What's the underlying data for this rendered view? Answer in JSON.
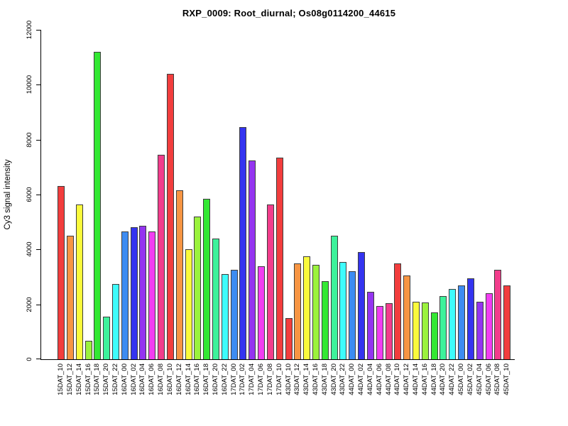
{
  "chart_data": {
    "type": "bar",
    "title": "RXP_0009: Root_diurnal; Os08g0114200_44615",
    "xlabel": "",
    "ylabel": "Cy3 signal intensity",
    "ylim": [
      0,
      12000
    ],
    "y_ticks": [
      0,
      2000,
      4000,
      6000,
      8000,
      10000,
      12000
    ],
    "grid": false,
    "legend": false,
    "background_color": "#ffffff",
    "axis_color": "#000000",
    "text_color": "#000000",
    "bar_border_color": "#3d3d3d",
    "palette": [
      "#f23d3d",
      "#f79543",
      "#fafa3c",
      "#9bf23d",
      "#33e833",
      "#3df29b",
      "#3efcfc",
      "#3d8cf2",
      "#3434f0",
      "#9434f0",
      "#f23df2",
      "#f23d8c"
    ],
    "palette_names": [
      "red",
      "orange",
      "yellow",
      "chartreuse",
      "green",
      "spring-green",
      "cyan",
      "azure",
      "blue",
      "violet",
      "magenta",
      "rose"
    ],
    "color_index": [
      0,
      1,
      2,
      3,
      4,
      5,
      6,
      7,
      8,
      9,
      10,
      11,
      0,
      1,
      2,
      3,
      4,
      5,
      6,
      7,
      8,
      9,
      10,
      11,
      0,
      0,
      1,
      2,
      3,
      4,
      5,
      6,
      7,
      8,
      9,
      10,
      11,
      0,
      1,
      2,
      3,
      4,
      5,
      6,
      7,
      8,
      9,
      10,
      11,
      0
    ],
    "categories": [
      "15DAT_10",
      "15DAT_12",
      "15DAT_14",
      "15DAT_16",
      "15DAT_18",
      "15DAT_20",
      "15DAT_22",
      "16DAT_00",
      "16DAT_02",
      "16DAT_04",
      "16DAT_06",
      "16DAT_08",
      "16DAT_10",
      "16DAT_12",
      "16DAT_14",
      "16DAT_16",
      "16DAT_18",
      "16DAT_20",
      "16DAT_22",
      "17DAT_00",
      "17DAT_02",
      "17DAT_04",
      "17DAT_06",
      "17DAT_08",
      "17DAT_10",
      "43DAT_10",
      "43DAT_12",
      "43DAT_14",
      "43DAT_16",
      "43DAT_18",
      "43DAT_20",
      "43DAT_22",
      "44DAT_00",
      "44DAT_02",
      "44DAT_04",
      "44DAT_06",
      "44DAT_08",
      "44DAT_10",
      "44DAT_12",
      "44DAT_14",
      "44DAT_16",
      "44DAT_18",
      "44DAT_20",
      "44DAT_22",
      "45DAT_00",
      "45DAT_02",
      "45DAT_04",
      "45DAT_06",
      "45DAT_08",
      "45DAT_10"
    ],
    "values": [
      6300,
      4500,
      5650,
      680,
      11200,
      1550,
      2750,
      4650,
      4800,
      4850,
      4650,
      7450,
      10400,
      6150,
      4000,
      5200,
      5850,
      4400,
      3100,
      3250,
      8450,
      7250,
      3400,
      5650,
      7350,
      1500,
      3500,
      3750,
      3450,
      2850,
      4500,
      3550,
      3200,
      3900,
      2450,
      1950,
      2050,
      3500,
      3050,
      2100,
      2080,
      1700,
      2300,
      2550,
      2700,
      2950,
      2100,
      2400,
      3250,
      2700
    ]
  }
}
